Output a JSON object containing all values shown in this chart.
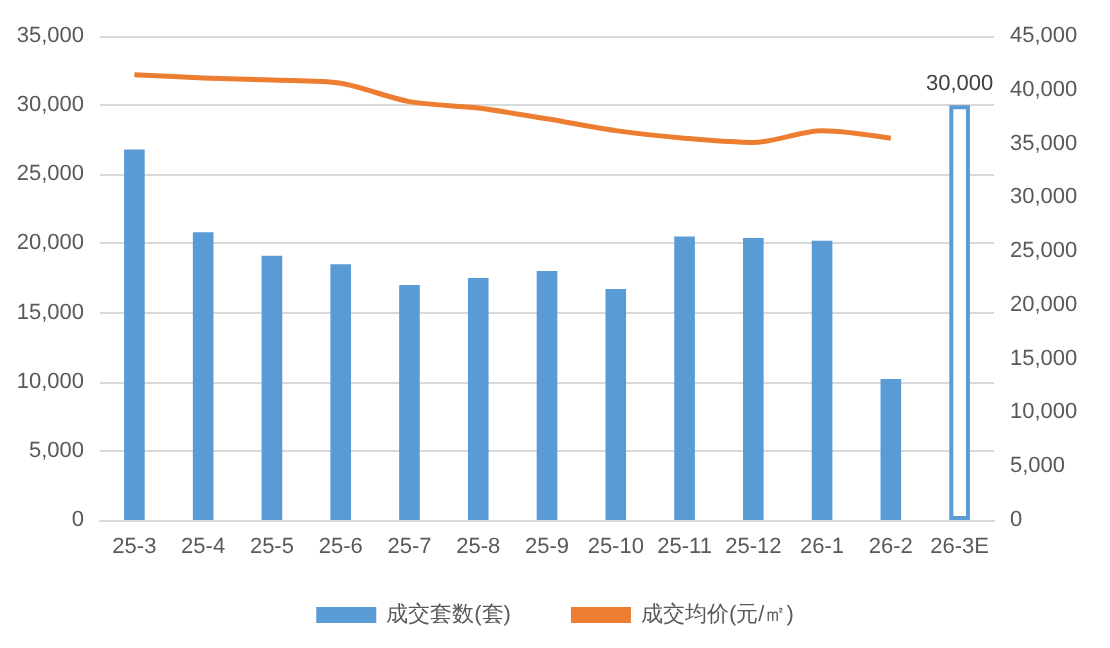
{
  "chart_data": {
    "type": "bar",
    "categories": [
      "25-3",
      "25-4",
      "25-5",
      "25-6",
      "25-7",
      "25-8",
      "25-9",
      "25-10",
      "25-11",
      "25-12",
      "26-1",
      "26-2",
      "26-3E"
    ],
    "series": [
      {
        "name": "成交套数(套)",
        "color": "#5b9bd5",
        "colors": [
          "#5b9bd5",
          "#5b9bd5",
          "#5b9bd5",
          "#5b9bd5",
          "#5b9bd5",
          "#5b9bd5",
          "#5b9bd5",
          "#5b9bd5",
          "#5b9bd5",
          "#5b9bd5",
          "#5b9bd5",
          "#5b9bd5",
          "#ffffff"
        ],
        "values": [
          26800,
          20800,
          19100,
          18500,
          17000,
          17500,
          18000,
          16700,
          20500,
          20400,
          20200,
          10200,
          30000
        ],
        "value_labels": [
          null,
          null,
          null,
          null,
          null,
          null,
          null,
          null,
          null,
          null,
          null,
          null,
          "30,000"
        ]
      },
      {
        "name": "成交均价(元/㎡)",
        "type": "line",
        "axis": "y2",
        "color": "#ed7d31",
        "values": [
          41400,
          41100,
          40900,
          40600,
          38900,
          38300,
          37300,
          36200,
          35500,
          35100,
          36200,
          35500,
          null
        ]
      }
    ],
    "ylim": [
      0,
      35000
    ],
    "yticks": [
      0,
      {
        "value": 5000,
        "label": "5,000"
      },
      {
        "value": 10000,
        "label": "10,000"
      },
      {
        "value": 15000,
        "label": "15,000"
      },
      {
        "value": 20000,
        "label": "20,000"
      },
      {
        "value": 25000,
        "label": "25,000"
      },
      {
        "value": 30000,
        "label": "30,000"
      },
      {
        "value": 35000,
        "label": "35,000"
      }
    ],
    "y2lim": [
      0,
      45000
    ],
    "y2ticks": [
      0,
      {
        "value": 5000,
        "label": "5,000"
      },
      {
        "value": 10000,
        "label": "10,000"
      },
      {
        "value": 15000,
        "label": "15,000"
      },
      {
        "value": 20000,
        "label": "20,000"
      },
      {
        "value": 25000,
        "label": "25,000"
      },
      {
        "value": 30000,
        "label": "30,000"
      },
      {
        "value": 35000,
        "label": "35,000"
      },
      {
        "value": 40000,
        "label": "40,000"
      },
      {
        "value": 45000,
        "label": "45,000"
      }
    ],
    "grid": "y",
    "legend": "bottom",
    "marker": "none"
  }
}
